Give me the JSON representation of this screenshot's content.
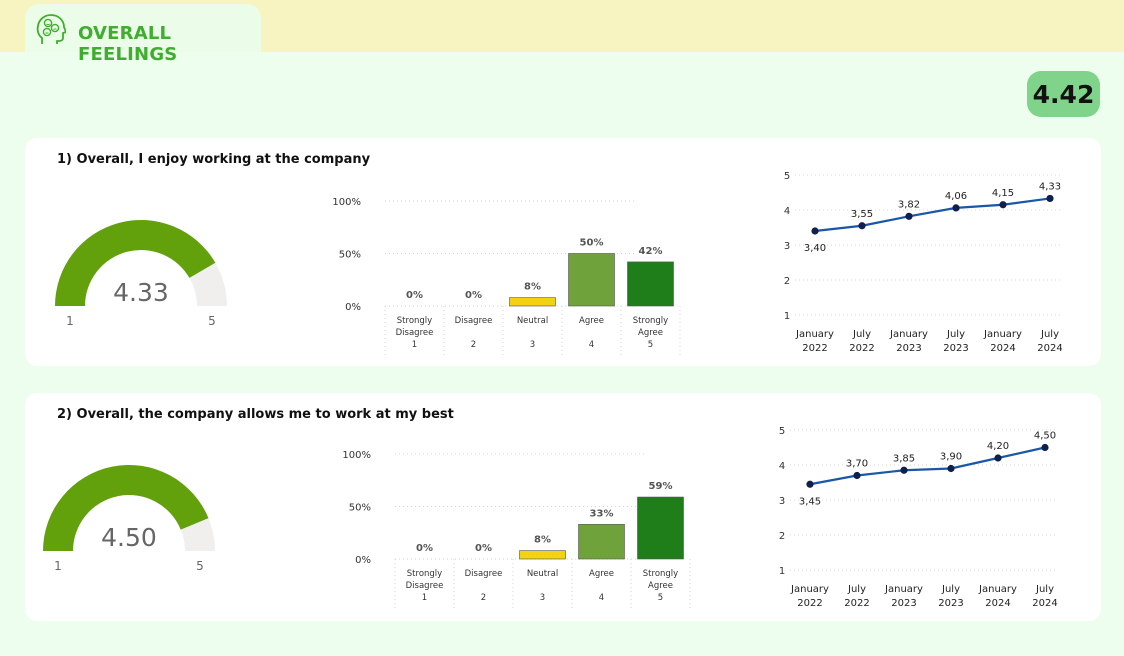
{
  "header": {
    "title": "OVERALL FEELINGS",
    "overall_score": "4.42"
  },
  "colors": {
    "gauge_fill": "#62a10c",
    "gauge_track": "#f0efee",
    "neutral": "#f2d211",
    "agree": "#70a23c",
    "strongly_agree": "#1f7d1a",
    "line": "#1a57a6",
    "dot": "#0f1f4e"
  },
  "questions": [
    {
      "title": "1) Overall, I enjoy working at the company",
      "gauge": {
        "value": 4.33,
        "label": "4.33",
        "min": 1,
        "max": 5,
        "min_label": "1",
        "max_label": "5"
      },
      "dist_chart": {
        "type": "bar",
        "y_ticks": [
          "100%",
          "50%",
          "0%"
        ],
        "categories": [
          {
            "lines": [
              "Strongly",
              "Disagree",
              "1"
            ],
            "value": 0,
            "label": "0%"
          },
          {
            "lines": [
              "Disagree",
              "",
              "2"
            ],
            "value": 0,
            "label": "0%"
          },
          {
            "lines": [
              "Neutral",
              "",
              "3"
            ],
            "value": 8,
            "label": "8%"
          },
          {
            "lines": [
              "Agree",
              "",
              "4"
            ],
            "value": 50,
            "label": "50%"
          },
          {
            "lines": [
              "Strongly",
              "Agree",
              "5"
            ],
            "value": 42,
            "label": "42%"
          }
        ]
      },
      "trend_chart": {
        "type": "line",
        "y_ticks": [
          "5",
          "4",
          "3",
          "2",
          "1"
        ],
        "ylim": [
          1,
          5
        ],
        "points": [
          {
            "x1": "January",
            "x2": "2022",
            "value": 3.4,
            "label": "3,40"
          },
          {
            "x1": "July",
            "x2": "2022",
            "value": 3.55,
            "label": "3,55"
          },
          {
            "x1": "January",
            "x2": "2023",
            "value": 3.82,
            "label": "3,82"
          },
          {
            "x1": "July",
            "x2": "2023",
            "value": 4.06,
            "label": "4,06"
          },
          {
            "x1": "January",
            "x2": "2024",
            "value": 4.15,
            "label": "4,15"
          },
          {
            "x1": "July",
            "x2": "2024",
            "value": 4.33,
            "label": "4,33"
          }
        ]
      }
    },
    {
      "title": "2) Overall, the company allows me to work at my best",
      "gauge": {
        "value": 4.5,
        "label": "4.50",
        "min": 1,
        "max": 5,
        "min_label": "1",
        "max_label": "5"
      },
      "dist_chart": {
        "type": "bar",
        "y_ticks": [
          "100%",
          "50%",
          "0%"
        ],
        "categories": [
          {
            "lines": [
              "Strongly",
              "Disagree",
              "1"
            ],
            "value": 0,
            "label": "0%"
          },
          {
            "lines": [
              "Disagree",
              "",
              "2"
            ],
            "value": 0,
            "label": "0%"
          },
          {
            "lines": [
              "Neutral",
              "",
              "3"
            ],
            "value": 8,
            "label": "8%"
          },
          {
            "lines": [
              "Agree",
              "",
              "4"
            ],
            "value": 33,
            "label": "33%"
          },
          {
            "lines": [
              "Strongly",
              "Agree",
              "5"
            ],
            "value": 59,
            "label": "59%"
          }
        ]
      },
      "trend_chart": {
        "type": "line",
        "y_ticks": [
          "5",
          "4",
          "3",
          "2",
          "1"
        ],
        "ylim": [
          1,
          5
        ],
        "points": [
          {
            "x1": "January",
            "x2": "2022",
            "value": 3.45,
            "label": "3,45"
          },
          {
            "x1": "July",
            "x2": "2022",
            "value": 3.7,
            "label": "3,70"
          },
          {
            "x1": "January",
            "x2": "2023",
            "value": 3.85,
            "label": "3,85"
          },
          {
            "x1": "July",
            "x2": "2023",
            "value": 3.9,
            "label": "3,90"
          },
          {
            "x1": "January",
            "x2": "2024",
            "value": 4.2,
            "label": "4,20"
          },
          {
            "x1": "July",
            "x2": "2024",
            "value": 4.5,
            "label": "4,50"
          }
        ]
      }
    }
  ],
  "chart_data": [
    {
      "type": "bar",
      "title": "1) Overall, I enjoy working at the company",
      "categories": [
        "Strongly Disagree 1",
        "Disagree 2",
        "Neutral 3",
        "Agree 4",
        "Strongly Agree 5"
      ],
      "values": [
        0,
        0,
        8,
        50,
        42
      ],
      "ylim": [
        0,
        100
      ]
    },
    {
      "type": "line",
      "title": "1) Overall, I enjoy working at the company",
      "x": [
        "January 2022",
        "July 2022",
        "January 2023",
        "July 2023",
        "January 2024",
        "July 2024"
      ],
      "values": [
        3.4,
        3.55,
        3.82,
        4.06,
        4.15,
        4.33
      ],
      "ylim": [
        1,
        5
      ]
    },
    {
      "type": "bar",
      "title": "2) Overall, the company allows me to work at my best",
      "categories": [
        "Strongly Disagree 1",
        "Disagree 2",
        "Neutral 3",
        "Agree 4",
        "Strongly Agree 5"
      ],
      "values": [
        0,
        0,
        8,
        33,
        59
      ],
      "ylim": [
        0,
        100
      ]
    },
    {
      "type": "line",
      "title": "2) Overall, the company allows me to work at my best",
      "x": [
        "January 2022",
        "July 2022",
        "January 2023",
        "July 2023",
        "January 2024",
        "July 2024"
      ],
      "values": [
        3.45,
        3.7,
        3.85,
        3.9,
        4.2,
        4.5
      ],
      "ylim": [
        1,
        5
      ]
    }
  ]
}
